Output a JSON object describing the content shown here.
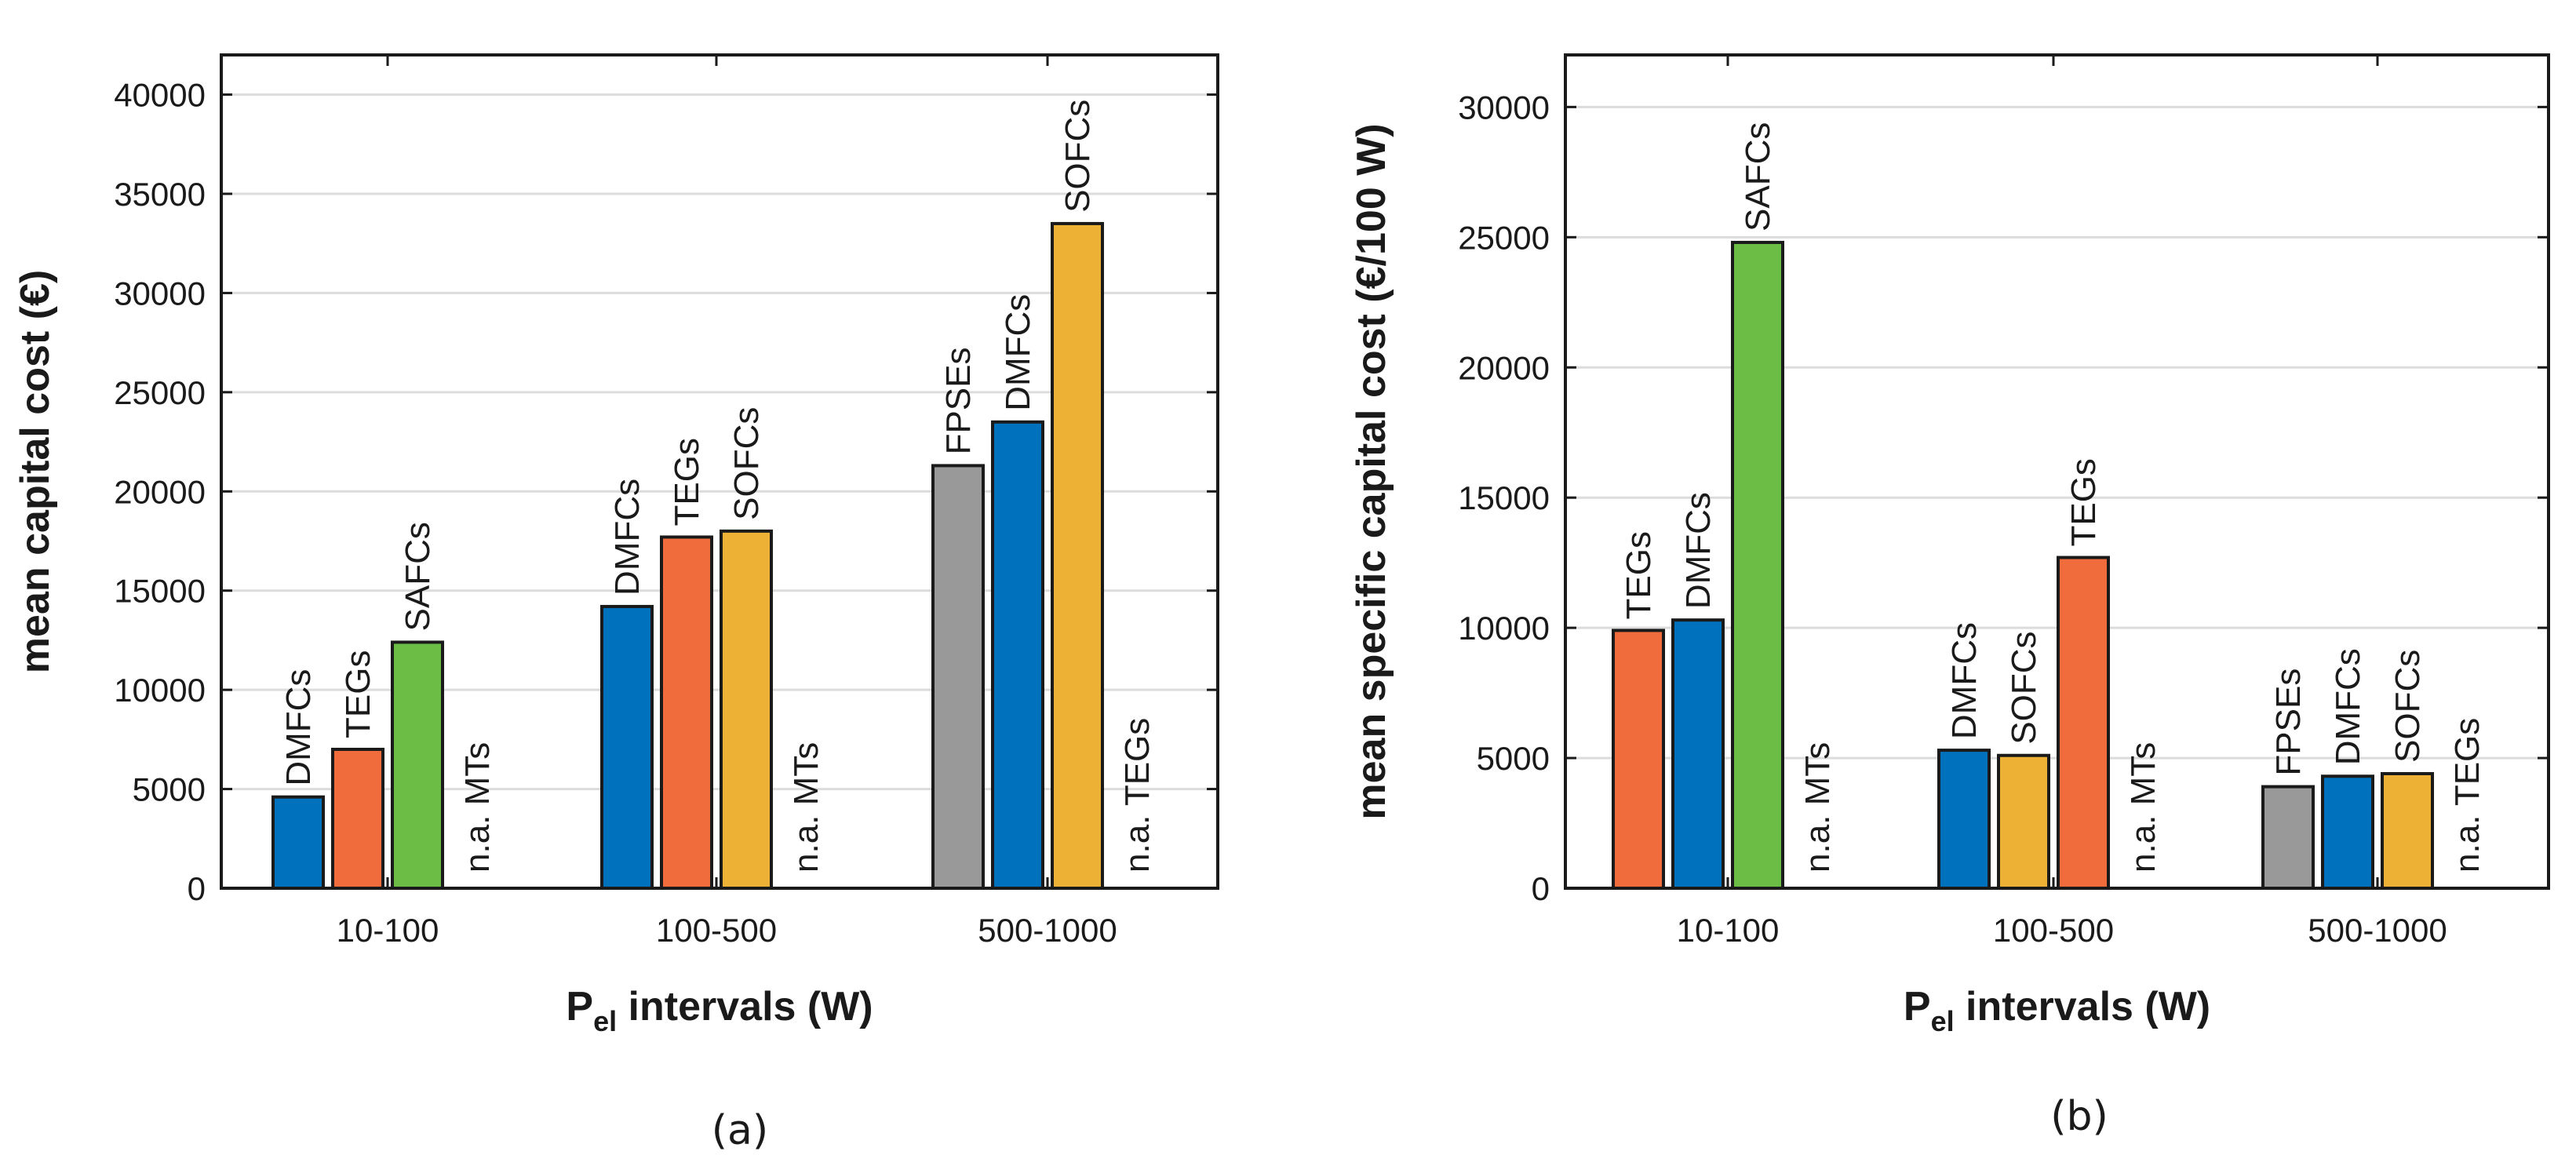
{
  "chart_data": [
    {
      "type": "bar",
      "panel_label": "(a)",
      "ylabel": "mean capital cost (€)",
      "xlabel_main": "P",
      "xlabel_sub": "el",
      "xlabel_rest": " intervals (W)",
      "ylim": [
        0,
        42000
      ],
      "yticks": [
        0,
        5000,
        10000,
        15000,
        20000,
        25000,
        30000,
        35000,
        40000
      ],
      "grid": true,
      "groups": [
        {
          "category": "10-100",
          "bars": [
            {
              "label": "DMFCs",
              "value": 4600,
              "color": "#0072bd"
            },
            {
              "label": "TEGs",
              "value": 7000,
              "color": "#f06c3c"
            },
            {
              "label": "SAFCs",
              "value": 12400,
              "color": "#6cbd45"
            },
            {
              "label": "n.a.  MTs",
              "value": null,
              "color": null
            }
          ]
        },
        {
          "category": "100-500",
          "bars": [
            {
              "label": "DMFCs",
              "value": 14200,
              "color": "#0072bd"
            },
            {
              "label": "TEGs",
              "value": 17700,
              "color": "#f06c3c"
            },
            {
              "label": "SOFCs",
              "value": 18000,
              "color": "#edb135"
            },
            {
              "label": "n.a.  MTs",
              "value": null,
              "color": null
            }
          ]
        },
        {
          "category": "500-1000",
          "bars": [
            {
              "label": "FPSEs",
              "value": 21300,
              "color": "#999999"
            },
            {
              "label": "DMFCs",
              "value": 23500,
              "color": "#0072bd"
            },
            {
              "label": "SOFCs",
              "value": 33500,
              "color": "#edb135"
            },
            {
              "label": "n.a.  TEGs",
              "value": null,
              "color": null
            }
          ]
        }
      ]
    },
    {
      "type": "bar",
      "panel_label": "(b)",
      "ylabel": "mean specific capital cost (€/100 W)",
      "xlabel_main": "P",
      "xlabel_sub": "el",
      "xlabel_rest": " intervals (W)",
      "ylim": [
        0,
        32000
      ],
      "yticks": [
        0,
        5000,
        10000,
        15000,
        20000,
        25000,
        30000
      ],
      "grid": true,
      "groups": [
        {
          "category": "10-100",
          "bars": [
            {
              "label": "TEGs",
              "value": 9900,
              "color": "#f06c3c"
            },
            {
              "label": "DMFCs",
              "value": 10300,
              "color": "#0072bd"
            },
            {
              "label": "SAFCs",
              "value": 24800,
              "color": "#6cbd45"
            },
            {
              "label": "n.a.  MTs",
              "value": null,
              "color": null
            }
          ]
        },
        {
          "category": "100-500",
          "bars": [
            {
              "label": "DMFCs",
              "value": 5300,
              "color": "#0072bd"
            },
            {
              "label": "SOFCs",
              "value": 5100,
              "color": "#edb135"
            },
            {
              "label": "TEGs",
              "value": 12700,
              "color": "#f06c3c"
            },
            {
              "label": "n.a.  MTs",
              "value": null,
              "color": null
            }
          ]
        },
        {
          "category": "500-1000",
          "bars": [
            {
              "label": "FPSEs",
              "value": 3900,
              "color": "#999999"
            },
            {
              "label": "DMFCs",
              "value": 4300,
              "color": "#0072bd"
            },
            {
              "label": "SOFCs",
              "value": 4400,
              "color": "#edb135"
            },
            {
              "label": "n.a.  TEGs",
              "value": null,
              "color": null
            }
          ]
        }
      ]
    }
  ]
}
